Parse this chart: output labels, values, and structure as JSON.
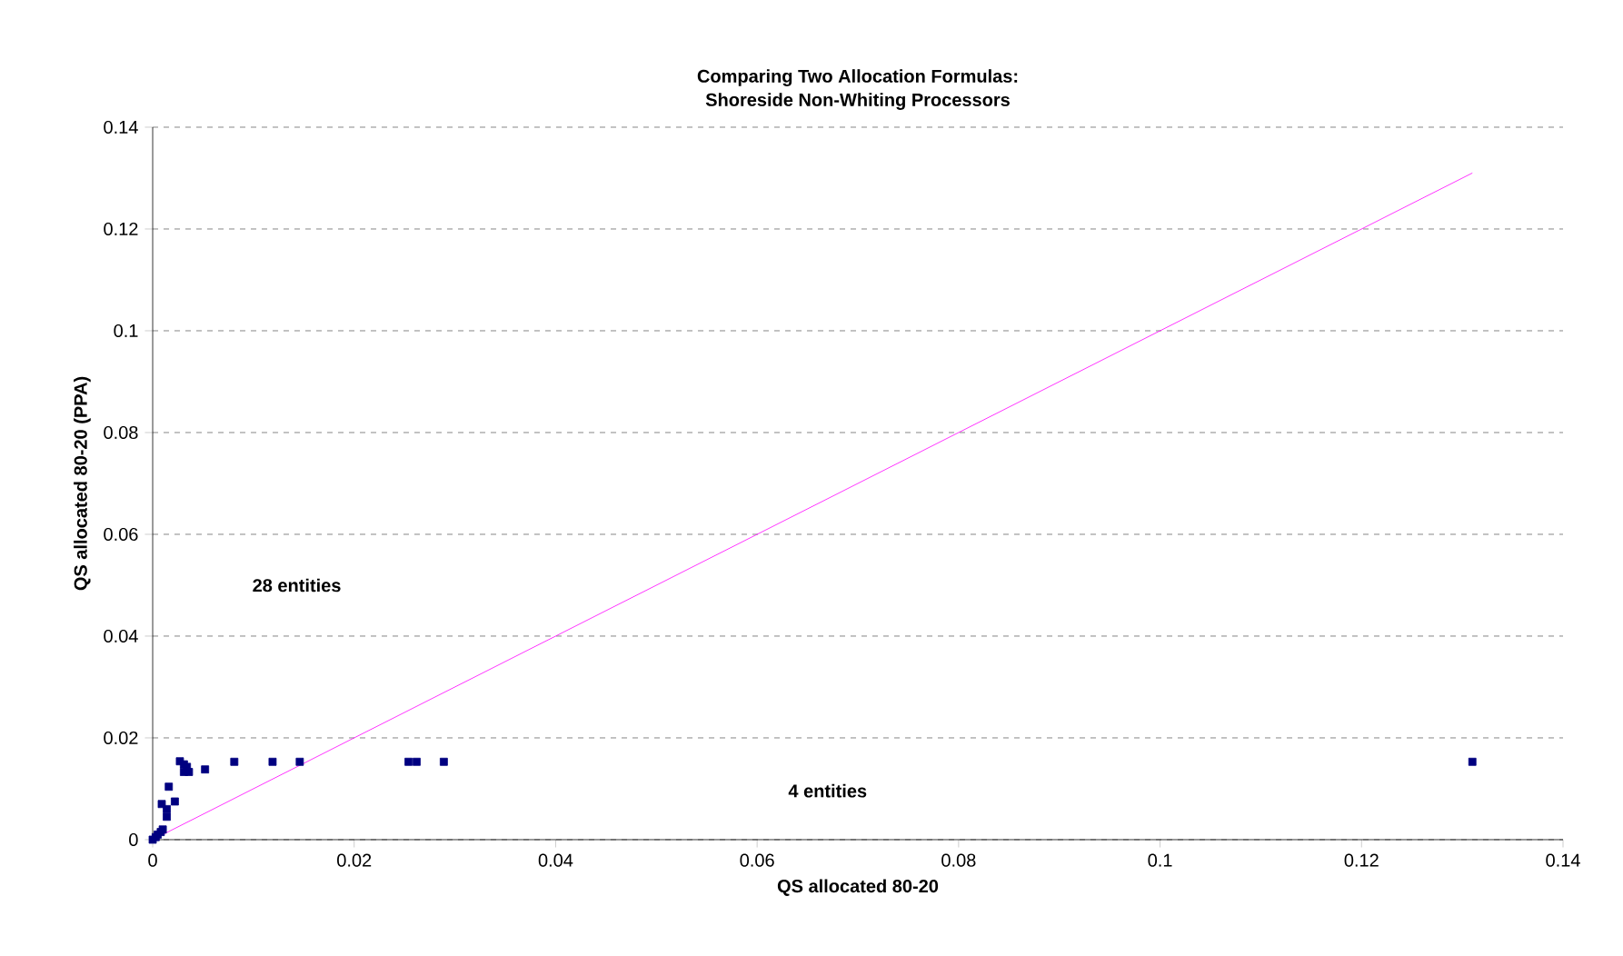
{
  "chart_data": {
    "type": "scatter",
    "title": "Comparing Two Allocation Formulas:\nShoreside Non-Whiting Processors",
    "xlabel": "QS allocated 80-20",
    "ylabel": "QS allocated 80-20 (PPA)",
    "series": [
      {
        "color": "#000080",
        "marker": "square",
        "x": [
          0,
          0.0003,
          0.0005,
          0.0008,
          0.001,
          0.0009,
          0.0014,
          0.0014,
          0.0016,
          0.0022,
          0.0027,
          0.0031,
          0.0034,
          0.0036,
          0.0031,
          0.0052,
          0.0081,
          0.0119,
          0.0146,
          0.0254,
          0.0262,
          0.0289,
          0.131
        ],
        "values": [
          0,
          0.0005,
          0.001,
          0.0015,
          0.002,
          0.007,
          0.0045,
          0.006,
          0.0104,
          0.0075,
          0.0154,
          0.0148,
          0.0143,
          0.0133,
          0.0133,
          0.0138,
          0.0153,
          0.0153,
          0.0153,
          0.0153,
          0.0153,
          0.0153,
          0.0153
        ]
      },
      {
        "type": "line",
        "color": "#ff00ff",
        "marker": "none",
        "x": [
          0,
          0.131
        ],
        "values": [
          0,
          0.131
        ]
      }
    ],
    "annotations": [
      "28 entities",
      "4 entities"
    ],
    "xlim": [
      0,
      0.14
    ],
    "ylim": [
      0,
      0.14
    ],
    "xticks": [
      0,
      0.02,
      0.04,
      0.06,
      0.08,
      0.1,
      0.12,
      0.14
    ],
    "yticks": [
      0,
      0.02,
      0.04,
      0.06,
      0.08,
      0.1,
      0.12,
      0.14
    ],
    "grid": "y"
  }
}
